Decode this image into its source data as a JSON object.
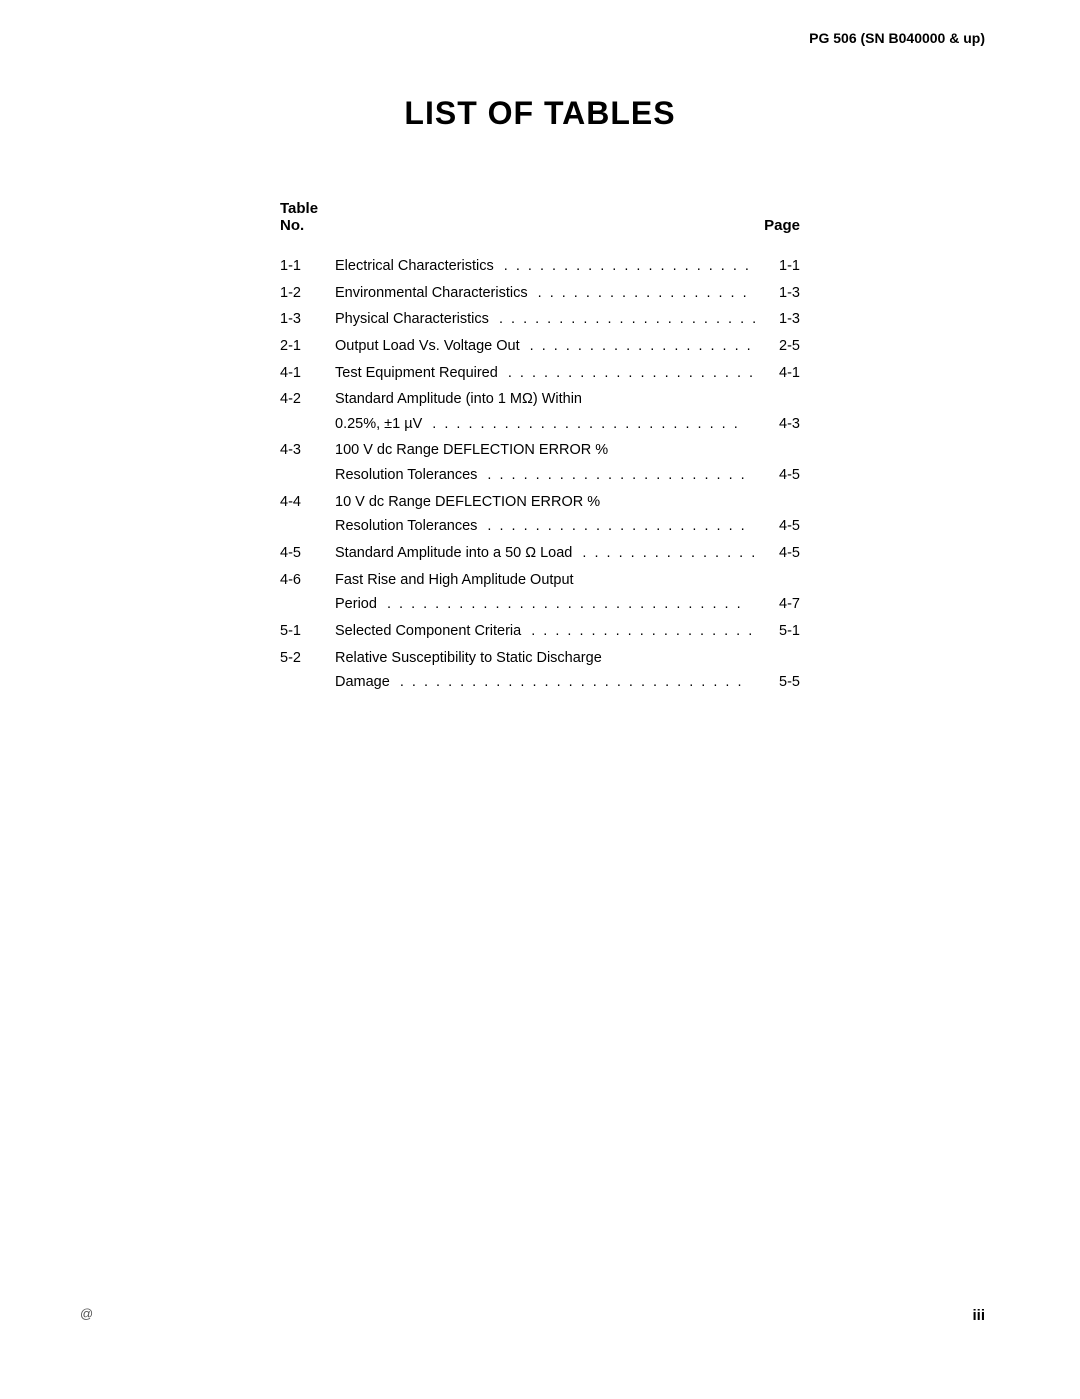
{
  "header": "PG 506 (SN B040000 & up)",
  "title": "LIST OF TABLES",
  "tableHeader": {
    "left1": "Table",
    "left2": "No.",
    "right": "Page"
  },
  "rows": [
    {
      "no": "1-1",
      "title": "Electrical Characteristics",
      "page": "1-1",
      "singleLine": true
    },
    {
      "no": "1-2",
      "title": "Environmental Characteristics",
      "page": "1-3",
      "singleLine": true
    },
    {
      "no": "1-3",
      "title": "Physical Characteristics",
      "page": "1-3",
      "singleLine": true
    },
    {
      "no": "2-1",
      "title": "Output Load Vs. Voltage Out",
      "page": "2-5",
      "singleLine": true
    },
    {
      "no": "4-1",
      "title": "Test Equipment Required",
      "page": "4-1",
      "singleLine": true
    },
    {
      "no": "4-2",
      "title": "Standard Amplitude (into 1 MΩ) Within",
      "title2": "0.25%, ±1 µV",
      "page": "4-3",
      "singleLine": false
    },
    {
      "no": "4-3",
      "title": "100 V dc Range DEFLECTION ERROR %",
      "title2": "Resolution Tolerances",
      "page": "4-5",
      "singleLine": false
    },
    {
      "no": "4-4",
      "title": "10 V dc Range DEFLECTION ERROR %",
      "title2": "Resolution Tolerances",
      "page": "4-5",
      "singleLine": false
    },
    {
      "no": "4-5",
      "title": "Standard Amplitude into a 50 Ω Load",
      "page": "4-5",
      "singleLine": true
    },
    {
      "no": "4-6",
      "title": "Fast Rise and High Amplitude Output",
      "title2": "Period",
      "page": "4-7",
      "singleLine": false
    },
    {
      "no": "5-1",
      "title": "Selected Component Criteria",
      "page": "5-1",
      "singleLine": true
    },
    {
      "no": "5-2",
      "title": "Relative Susceptibility to Static Discharge",
      "title2": "Damage",
      "page": "5-5",
      "singleLine": false
    }
  ],
  "pageNum": "iii",
  "atSymbol": "@"
}
